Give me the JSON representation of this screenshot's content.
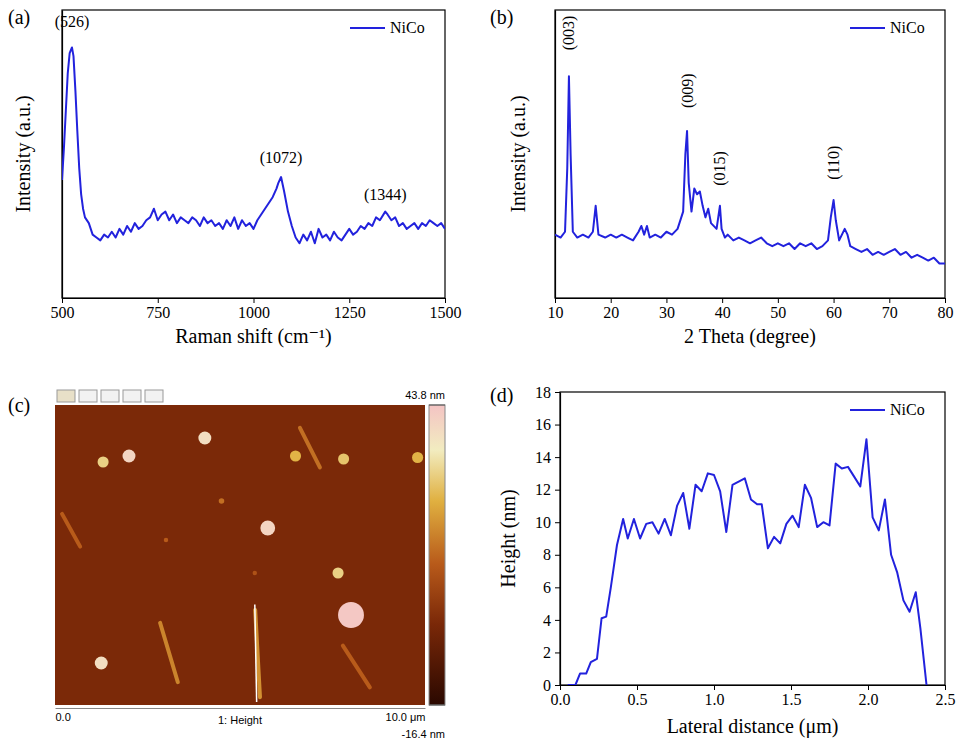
{
  "chart_data": [
    {
      "type": "line",
      "panel_label": "(a)",
      "x_label": "Raman shift (cm⁻¹)",
      "y_label": "Intensity (a.u.)",
      "xlim": [
        500,
        1500
      ],
      "xticks": [
        500,
        750,
        1000,
        1250,
        1500
      ],
      "ylim": [
        0,
        100
      ],
      "tick_labels": "x",
      "legend": "upper right",
      "x": [
        500,
        505,
        510,
        515,
        520,
        526,
        530,
        535,
        540,
        545,
        550,
        555,
        560,
        570,
        580,
        590,
        600,
        610,
        620,
        630,
        640,
        650,
        660,
        670,
        680,
        690,
        700,
        710,
        720,
        730,
        740,
        750,
        760,
        770,
        780,
        790,
        800,
        810,
        820,
        830,
        840,
        850,
        860,
        870,
        880,
        890,
        900,
        910,
        920,
        930,
        940,
        950,
        960,
        970,
        980,
        990,
        1000,
        1010,
        1020,
        1030,
        1040,
        1050,
        1060,
        1065,
        1072,
        1080,
        1090,
        1100,
        1110,
        1120,
        1130,
        1140,
        1150,
        1160,
        1170,
        1180,
        1190,
        1200,
        1210,
        1220,
        1230,
        1240,
        1250,
        1260,
        1270,
        1280,
        1290,
        1300,
        1310,
        1320,
        1330,
        1344,
        1350,
        1360,
        1370,
        1380,
        1390,
        1400,
        1410,
        1420,
        1430,
        1440,
        1450,
        1460,
        1470,
        1480,
        1490,
        1500
      ],
      "series": [
        {
          "name": "NiCo",
          "color": "#2222dd",
          "values": [
            41,
            52,
            65,
            78,
            85,
            87,
            84,
            72,
            58,
            45,
            36,
            31,
            28,
            26,
            22,
            21,
            20,
            22,
            21,
            23,
            21,
            24,
            22,
            25,
            23,
            26,
            24,
            25,
            27,
            28,
            31,
            27,
            29,
            30,
            27,
            29,
            26,
            28,
            27,
            26,
            28,
            27,
            25,
            28,
            26,
            27,
            25,
            26,
            24,
            27,
            25,
            28,
            24,
            27,
            25,
            26,
            24,
            27,
            29,
            31,
            33,
            35,
            38,
            40,
            42,
            37,
            30,
            25,
            21,
            19,
            22,
            20,
            23,
            19,
            24,
            21,
            22,
            20,
            23,
            21,
            20,
            22,
            24,
            22,
            23,
            25,
            24,
            26,
            25,
            28,
            27,
            30,
            29,
            27,
            28,
            25,
            26,
            24,
            25,
            26,
            24,
            26,
            25,
            27,
            26,
            25,
            26,
            24
          ]
        }
      ],
      "annotations": [
        {
          "text": "(526)",
          "x": 526,
          "y": 94
        },
        {
          "text": "(1072)",
          "x": 1072,
          "y": 47
        },
        {
          "text": "(1344)",
          "x": 1344,
          "y": 34
        }
      ]
    },
    {
      "type": "line",
      "panel_label": "(b)",
      "x_label": "2 Theta (degree)",
      "y_label": "Intensity (a.u.)",
      "xlim": [
        10,
        80
      ],
      "xticks": [
        10,
        20,
        30,
        40,
        50,
        60,
        70,
        80
      ],
      "ylim": [
        0,
        100
      ],
      "tick_labels": "x",
      "legend": "upper right",
      "x": [
        10,
        11,
        11.8,
        12.2,
        12.5,
        12.8,
        13.2,
        14,
        15,
        16,
        16.8,
        17.3,
        17.8,
        19,
        20,
        21,
        22,
        23,
        24,
        25,
        25.5,
        26,
        26.5,
        27,
        28,
        29,
        30,
        31,
        32,
        33,
        33.4,
        33.7,
        34,
        34.5,
        35,
        35.5,
        36,
        36.5,
        37,
        37.5,
        38,
        39,
        39.3,
        39.6,
        39.9,
        40.5,
        41,
        42,
        43,
        44,
        45,
        46,
        47,
        48,
        49,
        50,
        51,
        52,
        53,
        54,
        55,
        56,
        57,
        58,
        59,
        59.5,
        60,
        60.4,
        61,
        62,
        62.5,
        63,
        64,
        65,
        66,
        67,
        68,
        69,
        70,
        71,
        72,
        73,
        74,
        75,
        76,
        77,
        78,
        79,
        80
      ],
      "series": [
        {
          "name": "NiCo",
          "color": "#2222dd",
          "values": [
            22,
            21,
            23,
            45,
            77,
            50,
            23,
            21,
            22,
            21,
            23,
            32,
            22,
            21,
            22,
            21,
            22,
            21,
            20,
            23,
            25,
            22,
            25,
            21,
            22,
            21,
            23,
            22,
            24,
            30,
            50,
            58,
            40,
            30,
            38,
            36,
            37,
            32,
            28,
            31,
            26,
            24,
            28,
            32,
            24,
            21,
            22,
            20,
            21,
            20,
            19,
            20,
            21,
            19,
            18,
            19,
            18,
            19,
            17,
            19,
            18,
            19,
            17,
            18,
            20,
            28,
            34,
            27,
            20,
            24,
            22,
            18,
            17,
            16,
            17,
            15,
            16,
            15,
            16,
            17,
            15,
            16,
            14,
            15,
            14,
            13,
            14,
            12,
            12
          ]
        }
      ],
      "annotations": [
        {
          "text": "(003)",
          "x": 12.5,
          "y": 92
        },
        {
          "text": "(009)",
          "x": 33.7,
          "y": 72
        },
        {
          "text": "(015)",
          "x": 39.6,
          "y": 45
        },
        {
          "text": "(110)",
          "x": 60,
          "y": 47
        }
      ]
    },
    {
      "type": "image",
      "panel_label": "(c)",
      "x_label": "1: Height",
      "xlim": [
        0,
        10
      ],
      "xticks": [
        {
          "value": 0,
          "label": "0.0"
        },
        {
          "value": 10,
          "label": "10.0 μm"
        }
      ],
      "ylim": [
        0,
        10
      ],
      "tick_labels": "x",
      "colorbar": {
        "range": [
          -16.4,
          43.8
        ],
        "ticks": [
          {
            "value": 43.8,
            "label": "43.8 nm"
          },
          {
            "value": -16.4,
            "label": "-16.4 nm"
          }
        ]
      },
      "background": 0,
      "particles": {
        "x": [
          1.3,
          2.0,
          4.05,
          6.5,
          7.8,
          9.8,
          5.75,
          7.65,
          8.0,
          1.25,
          4.5,
          3.0,
          5.4
        ],
        "y": [
          8.1,
          8.3,
          8.9,
          8.3,
          8.2,
          8.25,
          5.9,
          4.4,
          3.0,
          1.4,
          6.8,
          5.5,
          4.4
        ],
        "size": [
          0.3,
          0.35,
          0.35,
          0.3,
          0.3,
          0.3,
          0.4,
          0.3,
          0.7,
          0.35,
          0.15,
          0.12,
          0.12
        ],
        "height": [
          30,
          40,
          38,
          25,
          28,
          25,
          40,
          30,
          43,
          38,
          15,
          12,
          10
        ]
      },
      "streaks": {
        "x1": [
          2.84,
          6.62,
          0.19,
          7.78,
          5.41
        ],
        "y1": [
          2.74,
          9.24,
          6.37,
          1.98,
          3.17
        ],
        "x2": [
          3.32,
          7.16,
          0.68,
          8.51,
          5.54
        ],
        "y2": [
          0.76,
          7.92,
          5.28,
          0.59,
          0.26
        ],
        "height": [
          18,
          15,
          12,
          12,
          20
        ]
      },
      "profile": {
        "x": [
          5.4,
          5.45
        ],
        "y": [
          3.35,
          0.1
        ]
      }
    },
    {
      "type": "line",
      "panel_label": "(d)",
      "x_label": "Lateral distance (μm)",
      "y_label": "Height (nm)",
      "xlim": [
        0,
        2.5
      ],
      "xticks": [
        {
          "value": 0,
          "label": "0.0"
        },
        0.5,
        {
          "value": 1,
          "label": "1.0"
        },
        1.5,
        {
          "value": 2,
          "label": "2.0"
        },
        2.5
      ],
      "ylim": [
        0,
        18
      ],
      "yticks": [
        0,
        2,
        4,
        6,
        8,
        10,
        12,
        14,
        16,
        18
      ],
      "legend": "upper right",
      "x": [
        0.05,
        0.1,
        0.13,
        0.17,
        0.2,
        0.24,
        0.27,
        0.3,
        0.33,
        0.37,
        0.41,
        0.44,
        0.48,
        0.52,
        0.56,
        0.6,
        0.64,
        0.68,
        0.72,
        0.76,
        0.8,
        0.84,
        0.88,
        0.92,
        0.96,
        1.0,
        1.04,
        1.08,
        1.12,
        1.16,
        1.2,
        1.24,
        1.28,
        1.31,
        1.35,
        1.39,
        1.43,
        1.47,
        1.51,
        1.55,
        1.59,
        1.63,
        1.67,
        1.71,
        1.75,
        1.79,
        1.83,
        1.87,
        1.91,
        1.95,
        1.99,
        2.03,
        2.07,
        2.11,
        2.15,
        2.19,
        2.23,
        2.27,
        2.31,
        2.34,
        2.38
      ],
      "series": [
        {
          "name": "NiCo",
          "color": "#2222dd",
          "values": [
            0,
            0,
            0.7,
            0.7,
            1.4,
            1.6,
            4.1,
            4.2,
            6,
            8.6,
            10.2,
            9,
            10.2,
            9,
            9.9,
            10,
            9.3,
            10.2,
            9.2,
            11,
            11.8,
            9.6,
            12.3,
            11.9,
            13,
            12.9,
            11.9,
            9.4,
            12.3,
            12.5,
            12.7,
            11.4,
            11.1,
            11.1,
            8.4,
            9.1,
            8.7,
            9.9,
            10.4,
            9.7,
            12.3,
            11.5,
            9.7,
            10,
            9.8,
            13.6,
            13.3,
            13.4,
            12.8,
            12.2,
            15.1,
            10.3,
            9.5,
            11.4,
            8,
            6.9,
            5.2,
            4.5,
            5.7,
            3.5,
            0
          ]
        }
      ]
    }
  ]
}
